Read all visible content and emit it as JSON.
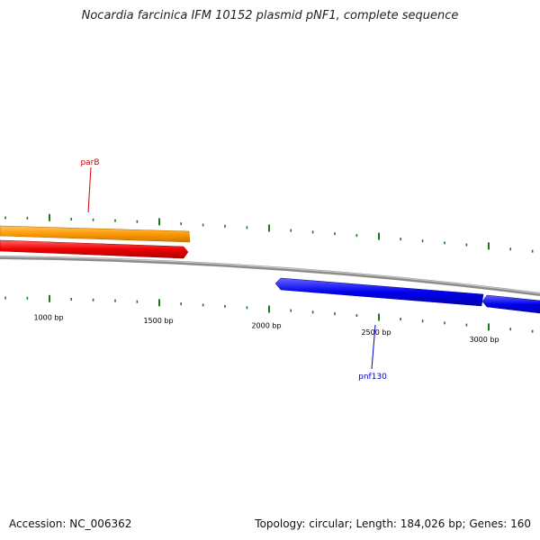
{
  "title": "Nocardia farcinica IFM 10152 plasmid pNF1, complete sequence",
  "footer": {
    "accession": "Accession: NC_006362",
    "summary": "Topology: circular; Length: 184,026 bp; Genes: 160"
  },
  "colors": {
    "backbone": "#8c8c8c",
    "tick": "#1a7a1a",
    "gene_forward_1": "#ff9900",
    "gene_forward_2": "#ee0000",
    "gene_reverse": "#0000ee",
    "label_forward": "#cc0000",
    "label_reverse": "#0000cc"
  },
  "scale": {
    "ticks": [
      {
        "label": "1000 bp"
      },
      {
        "label": "1500 bp"
      },
      {
        "label": "2000 bp"
      },
      {
        "label": "2500 bp"
      },
      {
        "label": "3000 bp"
      }
    ]
  },
  "genes": [
    {
      "name": "parB",
      "strand": "forward",
      "color_key": "gene_forward_1"
    },
    {
      "name": "pnf130",
      "strand": "reverse",
      "color_key": "gene_reverse"
    }
  ]
}
